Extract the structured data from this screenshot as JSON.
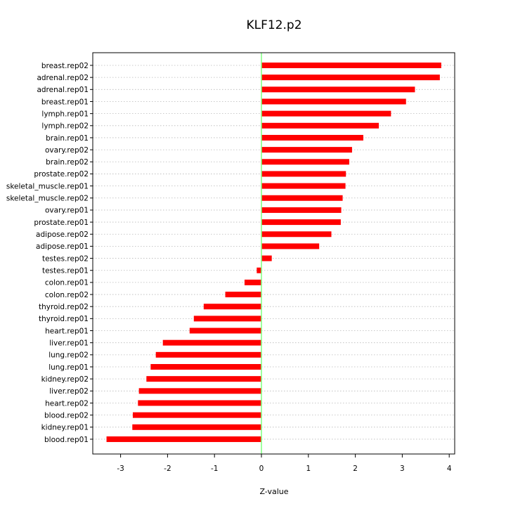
{
  "chart_data": {
    "type": "bar",
    "orientation": "horizontal",
    "title": "KLF12.p2",
    "xlabel": "Z-value",
    "ylabel": "",
    "xlim": [
      -3.6,
      4.1
    ],
    "xticks": [
      -3,
      -2,
      -1,
      0,
      1,
      2,
      3,
      4
    ],
    "grid": "horizontal dotted",
    "bar_color": "#ff0000",
    "zero_line_color": "#80ff80",
    "categories": [
      "breast.rep02",
      "adrenal.rep02",
      "adrenal.rep01",
      "breast.rep01",
      "lymph.rep01",
      "lymph.rep02",
      "brain.rep01",
      "ovary.rep02",
      "brain.rep02",
      "prostate.rep02",
      "skeletal_muscle.rep01",
      "skeletal_muscle.rep02",
      "ovary.rep01",
      "prostate.rep01",
      "adipose.rep02",
      "adipose.rep01",
      "testes.rep02",
      "testes.rep01",
      "colon.rep01",
      "colon.rep02",
      "thyroid.rep02",
      "thyroid.rep01",
      "heart.rep01",
      "liver.rep01",
      "lung.rep02",
      "lung.rep01",
      "kidney.rep02",
      "liver.rep02",
      "heart.rep02",
      "blood.rep02",
      "kidney.rep01",
      "blood.rep01"
    ],
    "values": [
      3.83,
      3.8,
      3.27,
      3.08,
      2.76,
      2.5,
      2.17,
      1.93,
      1.87,
      1.8,
      1.79,
      1.73,
      1.7,
      1.69,
      1.49,
      1.23,
      0.22,
      -0.1,
      -0.36,
      -0.77,
      -1.23,
      -1.44,
      -1.53,
      -2.1,
      -2.25,
      -2.36,
      -2.45,
      -2.61,
      -2.63,
      -2.74,
      -2.75,
      -3.3
    ]
  }
}
